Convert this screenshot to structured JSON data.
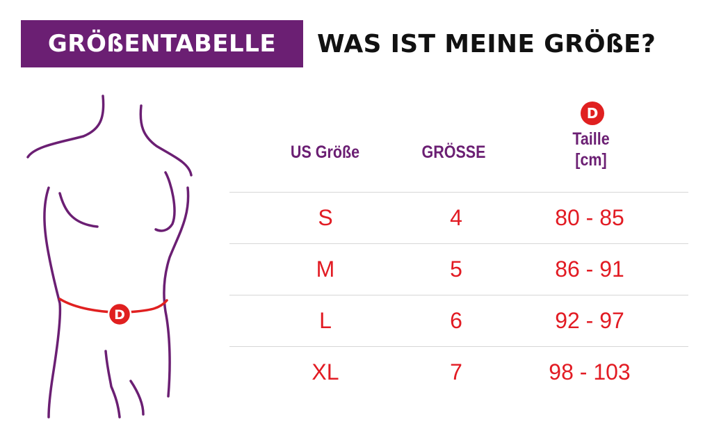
{
  "header": {
    "badge_title": "GRÖßENTABELLE",
    "question": "WAS IST MEINE GRÖßE?"
  },
  "figure": {
    "waist_marker_label": "D",
    "outline_color": "#6b1f73",
    "waist_band_color": "#e02020"
  },
  "table": {
    "columns": {
      "us_size": "US Größe",
      "size": "GRÖSSE",
      "waist_marker": "D",
      "waist_line1": "Taille",
      "waist_line2": "[cm]"
    },
    "rows": [
      {
        "us": "S",
        "size": "4",
        "waist": "80 - 85"
      },
      {
        "us": "M",
        "size": "5",
        "waist": "86 - 91"
      },
      {
        "us": "L",
        "size": "6",
        "waist": "92 - 97"
      },
      {
        "us": "XL",
        "size": "7",
        "waist": "98 - 103"
      }
    ]
  },
  "colors": {
    "brand_purple": "#6b1f73",
    "value_red": "#e21b23",
    "divider": "#d6d6d6"
  }
}
